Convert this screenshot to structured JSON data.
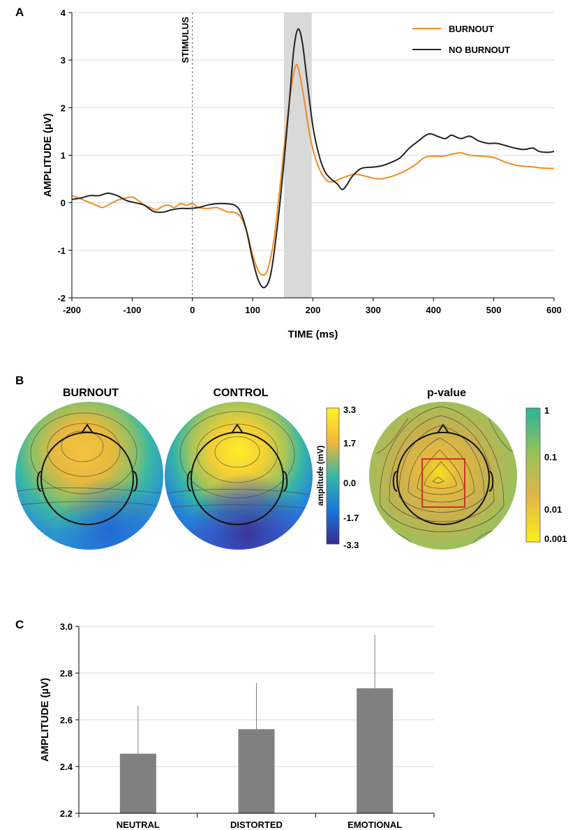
{
  "panels": {
    "a": "A",
    "b": "B",
    "c": "C"
  },
  "chart_data": [
    {
      "type": "line",
      "panel": "A",
      "xlabel": "TIME (ms)",
      "ylabel": "AMPLITUDE (µV)",
      "xlim": [
        -200,
        600
      ],
      "ylim": [
        -2,
        4
      ],
      "xticks": [
        -200,
        -100,
        0,
        100,
        200,
        300,
        400,
        500,
        600
      ],
      "yticks": [
        -2,
        -1,
        0,
        1,
        2,
        3,
        4
      ],
      "grid": true,
      "legend_position": "top-right",
      "annotations": [
        {
          "text": "STIMULUS",
          "x": 0,
          "style": "dashed vertical line"
        },
        {
          "type": "shaded-window",
          "x_range": [
            152,
            198
          ]
        }
      ],
      "series": [
        {
          "name": "BURNOUT",
          "color": "#f08a24",
          "points": [
            [
              -200,
              0.15
            ],
            [
              -185,
              0.08
            ],
            [
              -170,
              0.0
            ],
            [
              -160,
              -0.05
            ],
            [
              -150,
              -0.1
            ],
            [
              -140,
              -0.05
            ],
            [
              -125,
              0.05
            ],
            [
              -110,
              0.1
            ],
            [
              -100,
              0.12
            ],
            [
              -90,
              0.05
            ],
            [
              -80,
              -0.05
            ],
            [
              -70,
              -0.1
            ],
            [
              -60,
              -0.15
            ],
            [
              -50,
              -0.08
            ],
            [
              -40,
              -0.05
            ],
            [
              -30,
              -0.1
            ],
            [
              -20,
              -0.02
            ],
            [
              -10,
              -0.05
            ],
            [
              0,
              -0.02
            ],
            [
              10,
              -0.1
            ],
            [
              25,
              -0.12
            ],
            [
              40,
              -0.1
            ],
            [
              50,
              -0.15
            ],
            [
              60,
              -0.2
            ],
            [
              70,
              -0.2
            ],
            [
              80,
              -0.3
            ],
            [
              90,
              -0.6
            ],
            [
              100,
              -1.1
            ],
            [
              110,
              -1.45
            ],
            [
              118,
              -1.52
            ],
            [
              125,
              -1.4
            ],
            [
              135,
              -0.8
            ],
            [
              145,
              0.3
            ],
            [
              155,
              1.5
            ],
            [
              165,
              2.5
            ],
            [
              172,
              2.9
            ],
            [
              178,
              2.7
            ],
            [
              185,
              2.2
            ],
            [
              195,
              1.4
            ],
            [
              205,
              0.9
            ],
            [
              215,
              0.6
            ],
            [
              225,
              0.45
            ],
            [
              235,
              0.45
            ],
            [
              245,
              0.5
            ],
            [
              255,
              0.55
            ],
            [
              270,
              0.6
            ],
            [
              290,
              0.55
            ],
            [
              310,
              0.5
            ],
            [
              330,
              0.55
            ],
            [
              350,
              0.65
            ],
            [
              370,
              0.8
            ],
            [
              385,
              0.95
            ],
            [
              400,
              0.98
            ],
            [
              415,
              0.98
            ],
            [
              430,
              1.02
            ],
            [
              445,
              1.05
            ],
            [
              460,
              1.0
            ],
            [
              480,
              0.98
            ],
            [
              500,
              0.95
            ],
            [
              520,
              0.85
            ],
            [
              540,
              0.78
            ],
            [
              560,
              0.76
            ],
            [
              580,
              0.73
            ],
            [
              600,
              0.72
            ]
          ]
        },
        {
          "name": "NO BURNOUT",
          "color": "#222222",
          "points": [
            [
              -200,
              0.07
            ],
            [
              -185,
              0.1
            ],
            [
              -170,
              0.15
            ],
            [
              -155,
              0.15
            ],
            [
              -140,
              0.2
            ],
            [
              -125,
              0.15
            ],
            [
              -110,
              0.05
            ],
            [
              -95,
              0.0
            ],
            [
              -80,
              -0.05
            ],
            [
              -65,
              -0.18
            ],
            [
              -50,
              -0.2
            ],
            [
              -35,
              -0.15
            ],
            [
              -20,
              -0.12
            ],
            [
              -5,
              -0.12
            ],
            [
              10,
              -0.1
            ],
            [
              25,
              -0.05
            ],
            [
              40,
              -0.02
            ],
            [
              55,
              -0.02
            ],
            [
              70,
              -0.05
            ],
            [
              80,
              -0.2
            ],
            [
              90,
              -0.6
            ],
            [
              100,
              -1.2
            ],
            [
              110,
              -1.65
            ],
            [
              120,
              -1.78
            ],
            [
              130,
              -1.5
            ],
            [
              140,
              -0.6
            ],
            [
              150,
              0.6
            ],
            [
              160,
              2.0
            ],
            [
              168,
              3.2
            ],
            [
              175,
              3.65
            ],
            [
              182,
              3.4
            ],
            [
              190,
              2.6
            ],
            [
              200,
              1.6
            ],
            [
              210,
              1.0
            ],
            [
              220,
              0.65
            ],
            [
              230,
              0.5
            ],
            [
              240,
              0.4
            ],
            [
              248,
              0.28
            ],
            [
              255,
              0.35
            ],
            [
              265,
              0.55
            ],
            [
              280,
              0.72
            ],
            [
              300,
              0.75
            ],
            [
              315,
              0.78
            ],
            [
              330,
              0.85
            ],
            [
              345,
              0.95
            ],
            [
              360,
              1.15
            ],
            [
              375,
              1.3
            ],
            [
              385,
              1.4
            ],
            [
              395,
              1.45
            ],
            [
              410,
              1.38
            ],
            [
              420,
              1.35
            ],
            [
              430,
              1.42
            ],
            [
              445,
              1.35
            ],
            [
              460,
              1.4
            ],
            [
              475,
              1.3
            ],
            [
              490,
              1.25
            ],
            [
              505,
              1.25
            ],
            [
              520,
              1.2
            ],
            [
              535,
              1.15
            ],
            [
              550,
              1.12
            ],
            [
              565,
              1.15
            ],
            [
              575,
              1.08
            ],
            [
              590,
              1.06
            ],
            [
              600,
              1.08
            ]
          ]
        }
      ]
    },
    {
      "type": "bar",
      "panel": "C",
      "categories": [
        "NEUTRAL",
        "DISTORTED",
        "EMOTIONAL"
      ],
      "values": [
        2.455,
        2.56,
        2.735
      ],
      "error_upper": [
        2.66,
        2.758,
        2.963
      ],
      "ylabel": "AMPLITUDE (µV)",
      "ylim": [
        2.2,
        3.0
      ],
      "yticks": [
        "2.2",
        "2.4",
        "2.6",
        "2.8",
        "3.0"
      ],
      "grid": true,
      "color": "#808080"
    }
  ],
  "topomaps": {
    "burnout_title": "BURNOUT",
    "control_title": "CONTROL",
    "pvalue_title": "p-value",
    "amplitude_colorbar": {
      "label": "amplitude (mV)",
      "ticks": [
        "3.3",
        "1.7",
        "0.0",
        "-1.7",
        "-3.3"
      ],
      "colors": [
        "#fdf224",
        "#f2b73a",
        "#37b7a2",
        "#1a77d8",
        "#3a2a8e"
      ]
    },
    "pvalue_colorbar": {
      "ticks": [
        "1",
        "0.1",
        "0.01",
        "0.001"
      ],
      "colors": [
        "#2bb39a",
        "#93c35a",
        "#e3b54a",
        "#f9f019"
      ]
    }
  }
}
